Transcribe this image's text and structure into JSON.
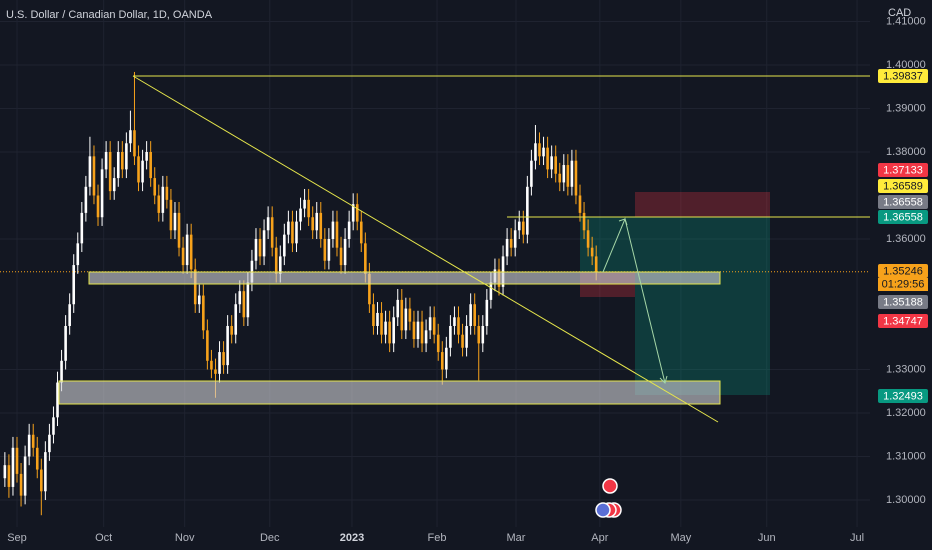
{
  "chart_data": {
    "type": "candlestick",
    "title": "U.S. Dollar / Canadian Dollar, 1D, OANDA",
    "currency": "CAD",
    "up_color": "#ffffff",
    "down_color": "#f7a21b",
    "grid": true,
    "xlim": [
      -1.2,
      213.6
    ],
    "ylim": [
      1.29379,
      1.41494
    ],
    "xticks": [
      {
        "value": 3,
        "label": "Sep"
      },
      {
        "value": 24.4,
        "label": "Oct"
      },
      {
        "value": 44.4,
        "label": "Nov"
      },
      {
        "value": 65.4,
        "label": "Dec"
      },
      {
        "value": 85.7,
        "label": "2023"
      },
      {
        "value": 106.7,
        "label": "Feb"
      },
      {
        "value": 126.2,
        "label": "Mar"
      },
      {
        "value": 146.9,
        "label": "Apr"
      },
      {
        "value": 166.9,
        "label": "May"
      },
      {
        "value": 188.1,
        "label": "Jun"
      },
      {
        "value": 210.4,
        "label": "Jul"
      }
    ],
    "yticks": [
      {
        "value": 1.3,
        "label": "1.30000"
      },
      {
        "value": 1.31,
        "label": "1.31000"
      },
      {
        "value": 1.32,
        "label": "1.32000"
      },
      {
        "value": 1.33,
        "label": "1.33000"
      },
      {
        "value": 1.36,
        "label": "1.36000"
      },
      {
        "value": 1.38,
        "label": "1.38000"
      },
      {
        "value": 1.39,
        "label": "1.39000"
      },
      {
        "value": 1.4,
        "label": "1.40000"
      },
      {
        "value": 1.41,
        "label": "1.41000"
      }
    ],
    "price_labels": [
      {
        "value": 1.39837,
        "color": "#ffeb3b"
      },
      {
        "value": 1.37133,
        "color": "#f23645"
      },
      {
        "value": 1.36589,
        "color": "#ffeb3b"
      },
      {
        "value": 1.36558,
        "color": "#787b86"
      },
      {
        "value": 1.36558,
        "color": "#089981"
      },
      {
        "value": 1.35246,
        "color": "#f7a21b"
      },
      {
        "value": 1.35188,
        "color": "#787b86"
      },
      {
        "value": 1.34747,
        "color": "#f23645"
      },
      {
        "value": 1.32493,
        "color": "#089981"
      }
    ],
    "countdown": "01:29:56",
    "candles": [
      [
        1.305,
        1.311,
        1.303,
        1.308
      ],
      [
        1.308,
        1.3105,
        1.3005,
        1.303
      ],
      [
        1.303,
        1.3145,
        1.301,
        1.312
      ],
      [
        1.312,
        1.3145,
        1.304,
        1.306
      ],
      [
        1.306,
        1.3085,
        1.2985,
        1.301
      ],
      [
        1.301,
        1.3125,
        1.299,
        1.31
      ],
      [
        1.31,
        1.3175,
        1.308,
        1.315
      ],
      [
        1.315,
        1.3175,
        1.31,
        1.312
      ],
      [
        1.312,
        1.3145,
        1.305,
        1.307
      ],
      [
        1.307,
        1.3095,
        1.2965,
        1.302
      ],
      [
        1.302,
        1.3135,
        1.3,
        1.311
      ],
      [
        1.311,
        1.3175,
        1.309,
        1.315
      ],
      [
        1.315,
        1.3215,
        1.313,
        1.319
      ],
      [
        1.319,
        1.3295,
        1.317,
        1.327
      ],
      [
        1.327,
        1.3345,
        1.325,
        1.332
      ],
      [
        1.332,
        1.3425,
        1.33,
        1.34
      ],
      [
        1.34,
        1.3475,
        1.338,
        1.345
      ],
      [
        1.345,
        1.3565,
        1.343,
        1.354
      ],
      [
        1.354,
        1.3615,
        1.352,
        1.359
      ],
      [
        1.359,
        1.3685,
        1.357,
        1.366
      ],
      [
        1.366,
        1.3745,
        1.364,
        1.372
      ],
      [
        1.372,
        1.3835,
        1.37,
        1.379
      ],
      [
        1.379,
        1.3815,
        1.368,
        1.37
      ],
      [
        1.37,
        1.3725,
        1.363,
        1.365
      ],
      [
        1.365,
        1.3785,
        1.363,
        1.376
      ],
      [
        1.376,
        1.3825,
        1.374,
        1.38
      ],
      [
        1.38,
        1.3825,
        1.369,
        1.371
      ],
      [
        1.371,
        1.3765,
        1.369,
        1.374
      ],
      [
        1.374,
        1.3825,
        1.372,
        1.38
      ],
      [
        1.38,
        1.3825,
        1.374,
        1.376
      ],
      [
        1.376,
        1.3845,
        1.374,
        1.382
      ],
      [
        1.382,
        1.3895,
        1.38,
        1.385
      ],
      [
        1.385,
        1.3984,
        1.377,
        1.379
      ],
      [
        1.379,
        1.3815,
        1.371,
        1.373
      ],
      [
        1.373,
        1.3805,
        1.371,
        1.378
      ],
      [
        1.378,
        1.3825,
        1.376,
        1.38
      ],
      [
        1.38,
        1.3825,
        1.372,
        1.374
      ],
      [
        1.374,
        1.3765,
        1.368,
        1.37
      ],
      [
        1.37,
        1.3725,
        1.364,
        1.366
      ],
      [
        1.366,
        1.3745,
        1.364,
        1.372
      ],
      [
        1.372,
        1.3745,
        1.367,
        1.369
      ],
      [
        1.369,
        1.3715,
        1.36,
        1.362
      ],
      [
        1.362,
        1.3685,
        1.36,
        1.366
      ],
      [
        1.366,
        1.3685,
        1.356,
        1.358
      ],
      [
        1.358,
        1.3605,
        1.352,
        1.354
      ],
      [
        1.354,
        1.3635,
        1.352,
        1.361
      ],
      [
        1.361,
        1.3635,
        1.351,
        1.353
      ],
      [
        1.353,
        1.3555,
        1.343,
        1.345
      ],
      [
        1.345,
        1.3495,
        1.343,
        1.347
      ],
      [
        1.347,
        1.3495,
        1.337,
        1.339
      ],
      [
        1.339,
        1.3415,
        1.33,
        1.332
      ],
      [
        1.332,
        1.3345,
        1.328,
        1.33
      ],
      [
        1.33,
        1.3325,
        1.3235,
        1.329
      ],
      [
        1.329,
        1.3365,
        1.327,
        1.334
      ],
      [
        1.334,
        1.3365,
        1.329,
        1.331
      ],
      [
        1.331,
        1.3425,
        1.329,
        1.34
      ],
      [
        1.34,
        1.3425,
        1.336,
        1.338
      ],
      [
        1.338,
        1.3475,
        1.336,
        1.345
      ],
      [
        1.345,
        1.3505,
        1.343,
        1.348
      ],
      [
        1.348,
        1.3505,
        1.34,
        1.342
      ],
      [
        1.342,
        1.3525,
        1.34,
        1.35
      ],
      [
        1.35,
        1.3575,
        1.348,
        1.355
      ],
      [
        1.355,
        1.3625,
        1.353,
        1.36
      ],
      [
        1.36,
        1.3625,
        1.354,
        1.356
      ],
      [
        1.356,
        1.3645,
        1.354,
        1.362
      ],
      [
        1.362,
        1.3675,
        1.36,
        1.365
      ],
      [
        1.365,
        1.3675,
        1.356,
        1.358
      ],
      [
        1.358,
        1.3605,
        1.35,
        1.352
      ],
      [
        1.352,
        1.3585,
        1.35,
        1.356
      ],
      [
        1.356,
        1.3635,
        1.354,
        1.361
      ],
      [
        1.361,
        1.3665,
        1.359,
        1.364
      ],
      [
        1.364,
        1.3665,
        1.357,
        1.359
      ],
      [
        1.359,
        1.3665,
        1.357,
        1.364
      ],
      [
        1.364,
        1.3695,
        1.362,
        1.367
      ],
      [
        1.367,
        1.3715,
        1.365,
        1.369
      ],
      [
        1.369,
        1.3715,
        1.363,
        1.365
      ],
      [
        1.365,
        1.3675,
        1.36,
        1.362
      ],
      [
        1.362,
        1.3685,
        1.36,
        1.366
      ],
      [
        1.366,
        1.3685,
        1.358,
        1.36
      ],
      [
        1.36,
        1.3625,
        1.353,
        1.355
      ],
      [
        1.355,
        1.3625,
        1.353,
        1.36
      ],
      [
        1.36,
        1.3665,
        1.358,
        1.364
      ],
      [
        1.364,
        1.3665,
        1.356,
        1.358
      ],
      [
        1.358,
        1.3605,
        1.352,
        1.354
      ],
      [
        1.354,
        1.3625,
        1.352,
        1.36
      ],
      [
        1.36,
        1.3665,
        1.358,
        1.364
      ],
      [
        1.364,
        1.3705,
        1.362,
        1.368
      ],
      [
        1.368,
        1.3705,
        1.362,
        1.364
      ],
      [
        1.364,
        1.3665,
        1.357,
        1.359
      ],
      [
        1.359,
        1.3615,
        1.35,
        1.352
      ],
      [
        1.352,
        1.3545,
        1.343,
        1.345
      ],
      [
        1.345,
        1.3475,
        1.338,
        1.34
      ],
      [
        1.34,
        1.3455,
        1.338,
        1.343
      ],
      [
        1.343,
        1.3455,
        1.336,
        1.338
      ],
      [
        1.338,
        1.3435,
        1.336,
        1.341
      ],
      [
        1.341,
        1.3435,
        1.334,
        1.336
      ],
      [
        1.336,
        1.3445,
        1.334,
        1.342
      ],
      [
        1.342,
        1.3485,
        1.34,
        1.346
      ],
      [
        1.346,
        1.3485,
        1.337,
        1.339
      ],
      [
        1.339,
        1.3465,
        1.337,
        1.344
      ],
      [
        1.344,
        1.3465,
        1.339,
        1.341
      ],
      [
        1.341,
        1.3435,
        1.335,
        1.337
      ],
      [
        1.337,
        1.3435,
        1.335,
        1.341
      ],
      [
        1.341,
        1.3435,
        1.334,
        1.336
      ],
      [
        1.336,
        1.3415,
        1.334,
        1.339
      ],
      [
        1.339,
        1.3445,
        1.337,
        1.342
      ],
      [
        1.342,
        1.3445,
        1.336,
        1.338
      ],
      [
        1.338,
        1.3405,
        1.332,
        1.334
      ],
      [
        1.334,
        1.3365,
        1.3265,
        1.33
      ],
      [
        1.33,
        1.3375,
        1.328,
        1.335
      ],
      [
        1.335,
        1.3425,
        1.333,
        1.34
      ],
      [
        1.34,
        1.3445,
        1.338,
        1.342
      ],
      [
        1.342,
        1.3445,
        1.336,
        1.338
      ],
      [
        1.338,
        1.3405,
        1.333,
        1.335
      ],
      [
        1.335,
        1.3425,
        1.333,
        1.34
      ],
      [
        1.34,
        1.3475,
        1.338,
        1.345
      ],
      [
        1.345,
        1.3475,
        1.338,
        1.34
      ],
      [
        1.34,
        1.3425,
        1.3275,
        1.336
      ],
      [
        1.336,
        1.3425,
        1.334,
        1.34
      ],
      [
        1.34,
        1.3485,
        1.338,
        1.346
      ],
      [
        1.346,
        1.3525,
        1.344,
        1.35
      ],
      [
        1.35,
        1.3555,
        1.348,
        1.353
      ],
      [
        1.353,
        1.3555,
        1.347,
        1.349
      ],
      [
        1.349,
        1.3585,
        1.347,
        1.356
      ],
      [
        1.356,
        1.3625,
        1.354,
        1.36
      ],
      [
        1.36,
        1.3625,
        1.356,
        1.358
      ],
      [
        1.358,
        1.3645,
        1.356,
        1.362
      ],
      [
        1.362,
        1.3665,
        1.36,
        1.364
      ],
      [
        1.364,
        1.3665,
        1.359,
        1.361
      ],
      [
        1.361,
        1.3745,
        1.359,
        1.372
      ],
      [
        1.372,
        1.3805,
        1.37,
        1.378
      ],
      [
        1.378,
        1.3862,
        1.376,
        1.382
      ],
      [
        1.382,
        1.3845,
        1.377,
        1.379
      ],
      [
        1.379,
        1.3835,
        1.377,
        1.381
      ],
      [
        1.381,
        1.3835,
        1.374,
        1.376
      ],
      [
        1.376,
        1.3815,
        1.374,
        1.379
      ],
      [
        1.379,
        1.3815,
        1.373,
        1.375
      ],
      [
        1.375,
        1.3775,
        1.371,
        1.373
      ],
      [
        1.373,
        1.3795,
        1.371,
        1.377
      ],
      [
        1.377,
        1.3795,
        1.37,
        1.372
      ],
      [
        1.372,
        1.3805,
        1.37,
        1.378
      ],
      [
        1.378,
        1.3805,
        1.368,
        1.37
      ],
      [
        1.37,
        1.3725,
        1.364,
        1.366
      ],
      [
        1.366,
        1.3685,
        1.36,
        1.362
      ],
      [
        1.362,
        1.3645,
        1.356,
        1.358
      ],
      [
        1.358,
        1.3605,
        1.354,
        1.356
      ],
      [
        1.356,
        1.3585,
        1.3505,
        1.3525
      ]
    ]
  }
}
